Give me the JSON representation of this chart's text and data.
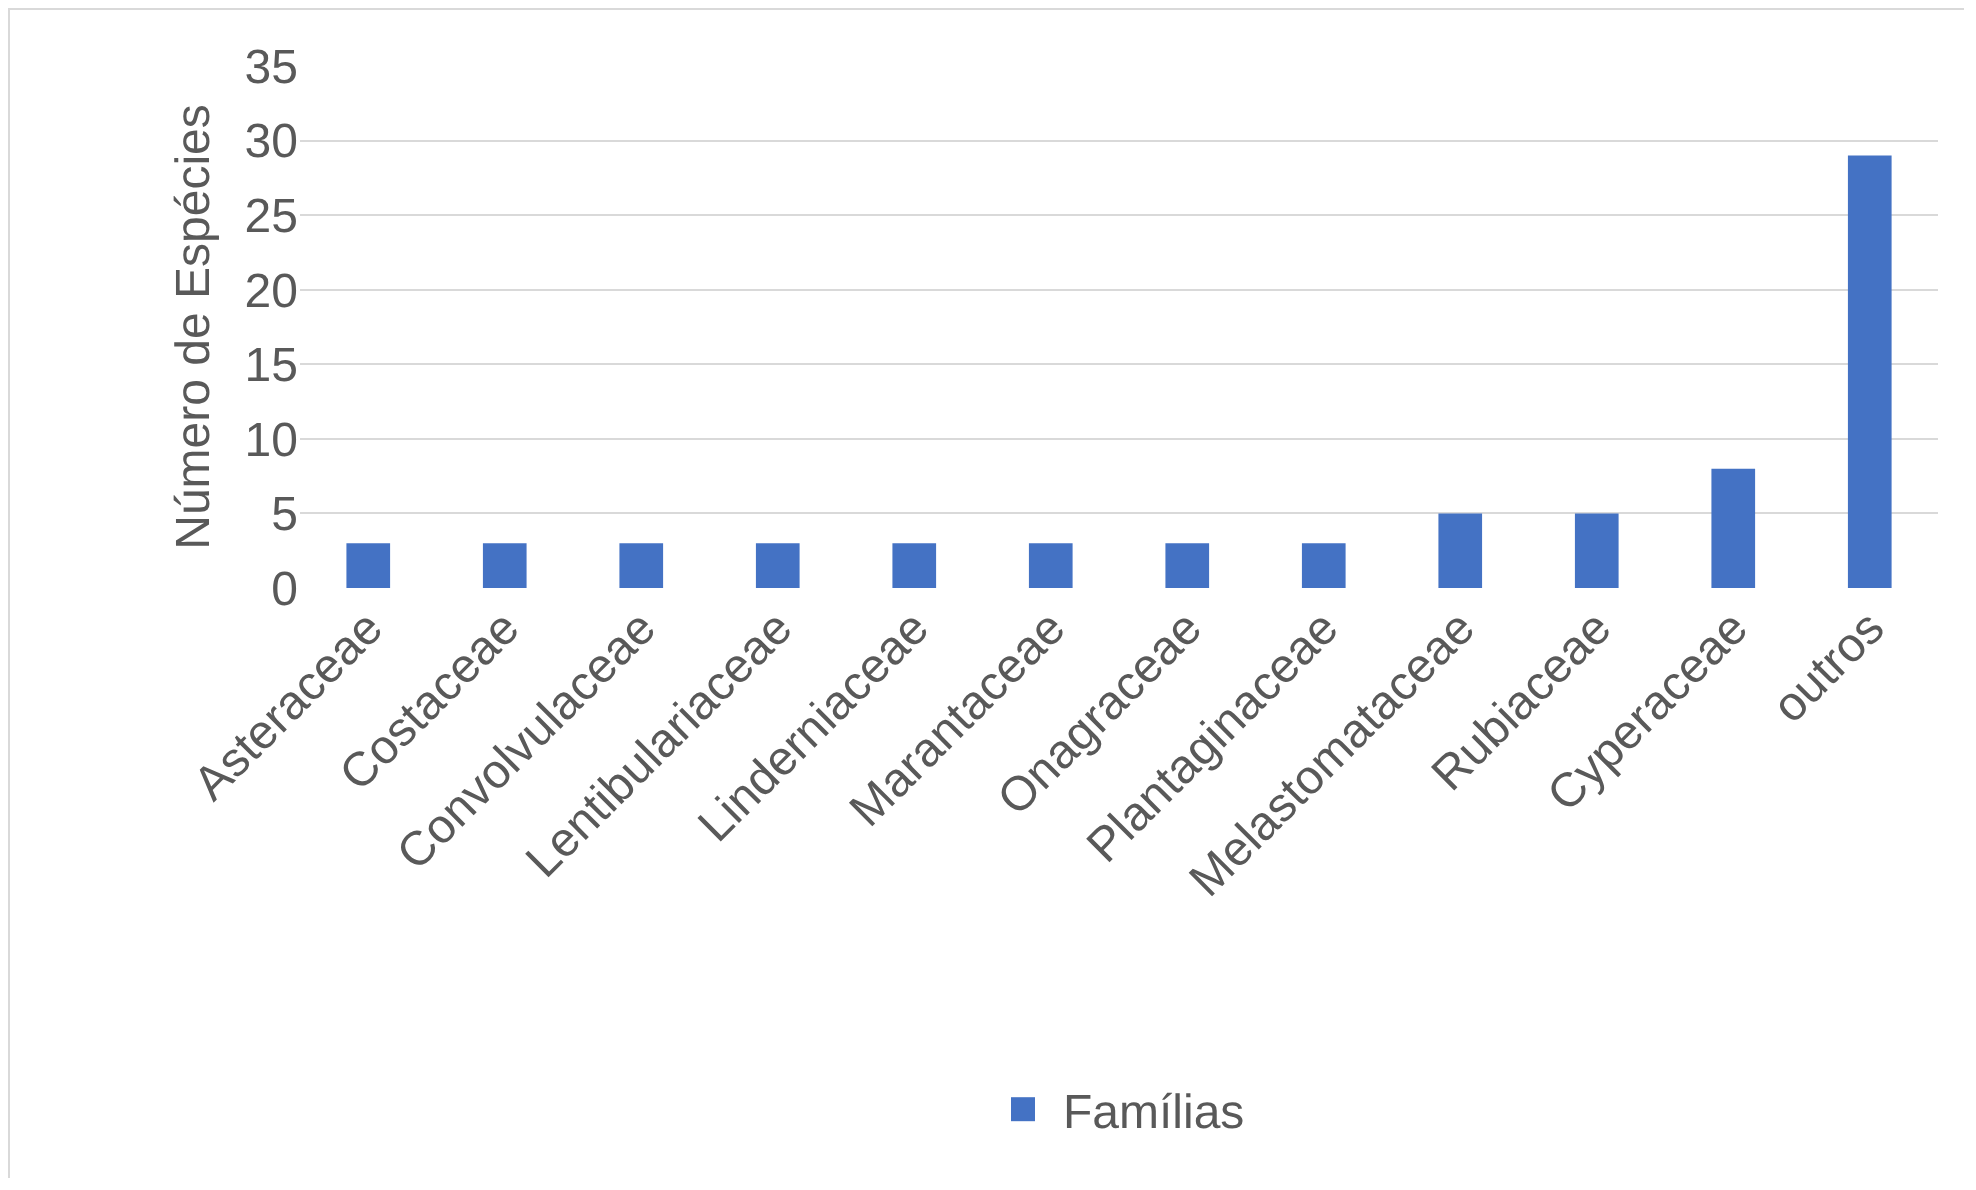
{
  "chart_data": {
    "type": "bar",
    "ylabel": "Número de Espécies",
    "categories": [
      "Asteraceae",
      "Costaceae",
      "Convolvulaceae",
      "Lentibulariaceae",
      "Linderniaceae",
      "Marantaceae",
      "Onagraceae",
      "Plantaginaceae",
      "Melastomataceae",
      "Rubiaceae",
      "Cyperaceae",
      "outros"
    ],
    "series": [
      {
        "name": "Famílias",
        "color": "#4472c4",
        "values": [
          3,
          3,
          3,
          3,
          3,
          3,
          3,
          3,
          5,
          5,
          8,
          29
        ]
      }
    ],
    "ylim": [
      0,
      35
    ],
    "yticks": [
      0,
      5,
      10,
      15,
      20,
      25,
      30,
      35
    ],
    "grid": "y",
    "legend": "bottom"
  }
}
